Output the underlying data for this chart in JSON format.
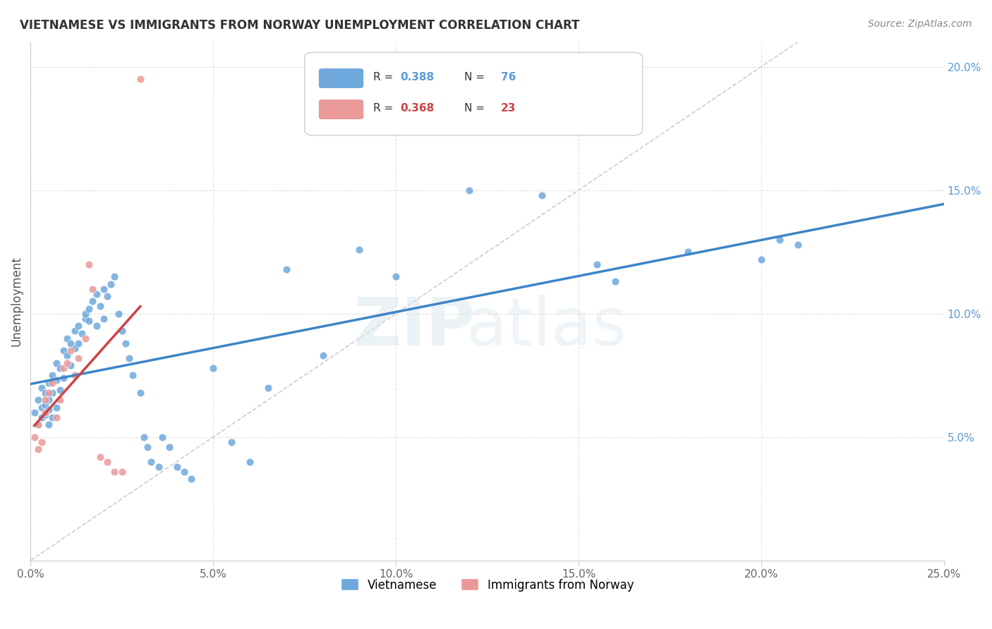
{
  "title": "VIETNAMESE VS IMMIGRANTS FROM NORWAY UNEMPLOYMENT CORRELATION CHART",
  "source": "Source: ZipAtlas.com",
  "ylabel_text": "Unemployment",
  "xlim": [
    0.0,
    0.25
  ],
  "ylim": [
    0.0,
    0.21
  ],
  "xtick_labels": [
    "0.0%",
    "5.0%",
    "10.0%",
    "15.0%",
    "20.0%",
    "25.0%"
  ],
  "xtick_values": [
    0.0,
    0.05,
    0.1,
    0.15,
    0.2,
    0.25
  ],
  "ytick_labels": [
    "5.0%",
    "10.0%",
    "15.0%",
    "20.0%"
  ],
  "ytick_values": [
    0.05,
    0.1,
    0.15,
    0.2
  ],
  "background_color": "#ffffff",
  "grid_color": "#dddddd",
  "color_vietnamese": "#6fa8dc",
  "color_norway": "#ea9999",
  "color_line_vietnamese": "#3d85c8",
  "color_line_norway": "#cc4444",
  "color_diagonal": "#cccccc",
  "scatter_alpha": 0.85,
  "scatter_size": 60,
  "legend_label1": "Vietnamese",
  "legend_label2": "Immigrants from Norway",
  "vietnamese_x": [
    0.001,
    0.002,
    0.002,
    0.003,
    0.003,
    0.003,
    0.004,
    0.004,
    0.004,
    0.005,
    0.005,
    0.005,
    0.005,
    0.006,
    0.006,
    0.006,
    0.007,
    0.007,
    0.007,
    0.008,
    0.008,
    0.009,
    0.009,
    0.01,
    0.01,
    0.011,
    0.011,
    0.012,
    0.012,
    0.013,
    0.013,
    0.014,
    0.015,
    0.015,
    0.016,
    0.016,
    0.017,
    0.018,
    0.018,
    0.019,
    0.02,
    0.02,
    0.021,
    0.022,
    0.023,
    0.024,
    0.025,
    0.026,
    0.027,
    0.028,
    0.03,
    0.031,
    0.032,
    0.033,
    0.035,
    0.036,
    0.038,
    0.04,
    0.042,
    0.044,
    0.05,
    0.055,
    0.06,
    0.065,
    0.07,
    0.08,
    0.09,
    0.1,
    0.12,
    0.14,
    0.155,
    0.16,
    0.18,
    0.2,
    0.205,
    0.21
  ],
  "vietnamese_y": [
    0.06,
    0.065,
    0.055,
    0.062,
    0.058,
    0.07,
    0.063,
    0.059,
    0.068,
    0.072,
    0.065,
    0.055,
    0.061,
    0.075,
    0.068,
    0.058,
    0.08,
    0.073,
    0.062,
    0.069,
    0.078,
    0.085,
    0.074,
    0.09,
    0.083,
    0.088,
    0.079,
    0.093,
    0.086,
    0.095,
    0.088,
    0.092,
    0.098,
    0.1,
    0.097,
    0.102,
    0.105,
    0.108,
    0.095,
    0.103,
    0.11,
    0.098,
    0.107,
    0.112,
    0.115,
    0.1,
    0.093,
    0.088,
    0.082,
    0.075,
    0.068,
    0.05,
    0.046,
    0.04,
    0.038,
    0.05,
    0.046,
    0.038,
    0.036,
    0.033,
    0.078,
    0.048,
    0.04,
    0.07,
    0.118,
    0.083,
    0.126,
    0.115,
    0.15,
    0.148,
    0.12,
    0.113,
    0.125,
    0.122,
    0.13,
    0.128
  ],
  "norway_x": [
    0.001,
    0.002,
    0.002,
    0.003,
    0.004,
    0.004,
    0.005,
    0.006,
    0.007,
    0.008,
    0.009,
    0.01,
    0.011,
    0.012,
    0.013,
    0.015,
    0.016,
    0.017,
    0.019,
    0.021,
    0.023,
    0.025,
    0.03
  ],
  "norway_y": [
    0.05,
    0.055,
    0.045,
    0.048,
    0.06,
    0.065,
    0.068,
    0.072,
    0.058,
    0.065,
    0.078,
    0.08,
    0.085,
    0.075,
    0.082,
    0.09,
    0.12,
    0.11,
    0.042,
    0.04,
    0.036,
    0.036,
    0.195
  ]
}
